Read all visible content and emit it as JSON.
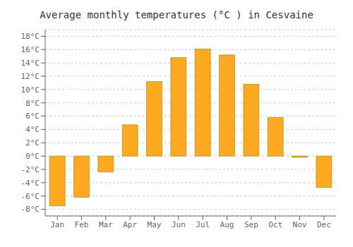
{
  "chart_data": {
    "type": "bar",
    "title": "Average monthly temperatures (°C ) in Cesvaine",
    "categories": [
      "Jan",
      "Feb",
      "Mar",
      "Apr",
      "May",
      "Jun",
      "Jul",
      "Aug",
      "Sep",
      "Oct",
      "Nov",
      "Dec"
    ],
    "values": [
      -7.5,
      -6.2,
      -2.4,
      4.7,
      11.2,
      14.8,
      16.1,
      15.2,
      10.8,
      5.8,
      -0.2,
      -4.7
    ],
    "color": "#FFA920",
    "ylim": [
      -9,
      19
    ],
    "yticks": [
      {
        "value": -8,
        "label": "-8°C"
      },
      {
        "value": -6,
        "label": "-6°C"
      },
      {
        "value": -4,
        "label": "-4°C"
      },
      {
        "value": -2,
        "label": "-2°C"
      },
      {
        "value": 0,
        "label": "0°C"
      },
      {
        "value": 2,
        "label": "2°C"
      },
      {
        "value": 4,
        "label": "4°C"
      },
      {
        "value": 6,
        "label": "6°C"
      },
      {
        "value": 8,
        "label": "8°C"
      },
      {
        "value": 10,
        "label": "10°C"
      },
      {
        "value": 12,
        "label": "12°C"
      },
      {
        "value": 14,
        "label": "14°C"
      },
      {
        "value": 16,
        "label": "16°C"
      },
      {
        "value": 18,
        "label": "18°C"
      }
    ],
    "grid": true
  }
}
